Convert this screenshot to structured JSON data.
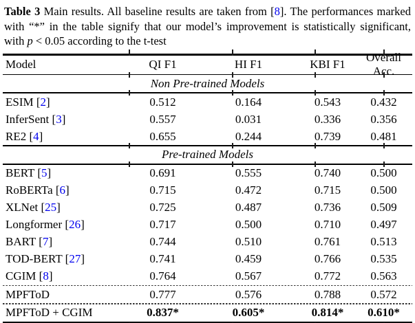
{
  "colors": {
    "citation": "#0000EE",
    "text": "#000000",
    "rule": "#000000"
  },
  "caption": {
    "label": "Table 3",
    "segments": [
      {
        "t": "  Main results. All baseline results are taken from ["
      },
      {
        "t": "8",
        "style": "cite"
      },
      {
        "t": "]. The performances marked with “*” in the table signify that our model’s improvement is statistically significant, with "
      },
      {
        "t": "p",
        "style": "italic"
      },
      {
        "t": " < 0.05 according to the t-test"
      }
    ]
  },
  "table": {
    "columns": [
      "Model",
      "QI F1",
      "HI F1",
      "KBI F1",
      "Overall Acc."
    ],
    "sections": [
      {
        "title": "Non Pre-trained Models",
        "rows": [
          {
            "model": "ESIM",
            "cite": "2",
            "values": [
              "0.512",
              "0.164",
              "0.543",
              "0.432"
            ]
          },
          {
            "model": "InferSent",
            "cite": "3",
            "values": [
              "0.557",
              "0.031",
              "0.336",
              "0.356"
            ]
          },
          {
            "model": "RE2",
            "cite": "4",
            "values": [
              "0.655",
              "0.244",
              "0.739",
              "0.481"
            ]
          }
        ]
      },
      {
        "title": "Pre-trained Models",
        "rows": [
          {
            "model": "BERT",
            "cite": "5",
            "values": [
              "0.691",
              "0.555",
              "0.740",
              "0.500"
            ]
          },
          {
            "model": "RoBERTa",
            "cite": "6",
            "values": [
              "0.715",
              "0.472",
              "0.715",
              "0.500"
            ]
          },
          {
            "model": "XLNet",
            "cite": "25",
            "values": [
              "0.725",
              "0.487",
              "0.736",
              "0.509"
            ]
          },
          {
            "model": "Longformer",
            "cite": "26",
            "values": [
              "0.717",
              "0.500",
              "0.710",
              "0.497"
            ]
          },
          {
            "model": "BART",
            "cite": "7",
            "values": [
              "0.744",
              "0.510",
              "0.761",
              "0.513"
            ]
          },
          {
            "model": "TOD-BERT",
            "cite": "27",
            "values": [
              "0.741",
              "0.459",
              "0.766",
              "0.535"
            ]
          },
          {
            "model": "CGIM",
            "cite": "8",
            "values": [
              "0.764",
              "0.567",
              "0.772",
              "0.563"
            ]
          },
          {
            "model": "MPFToD",
            "cite": null,
            "sep_before": "dashed",
            "values": [
              "0.777",
              "0.576",
              "0.788",
              "0.572"
            ]
          },
          {
            "model": "MPFToD + CGIM",
            "cite": null,
            "sep_before": "dashed",
            "bold_values": true,
            "values": [
              "0.837*",
              "0.605*",
              "0.814*",
              "0.610*"
            ]
          }
        ]
      }
    ]
  }
}
